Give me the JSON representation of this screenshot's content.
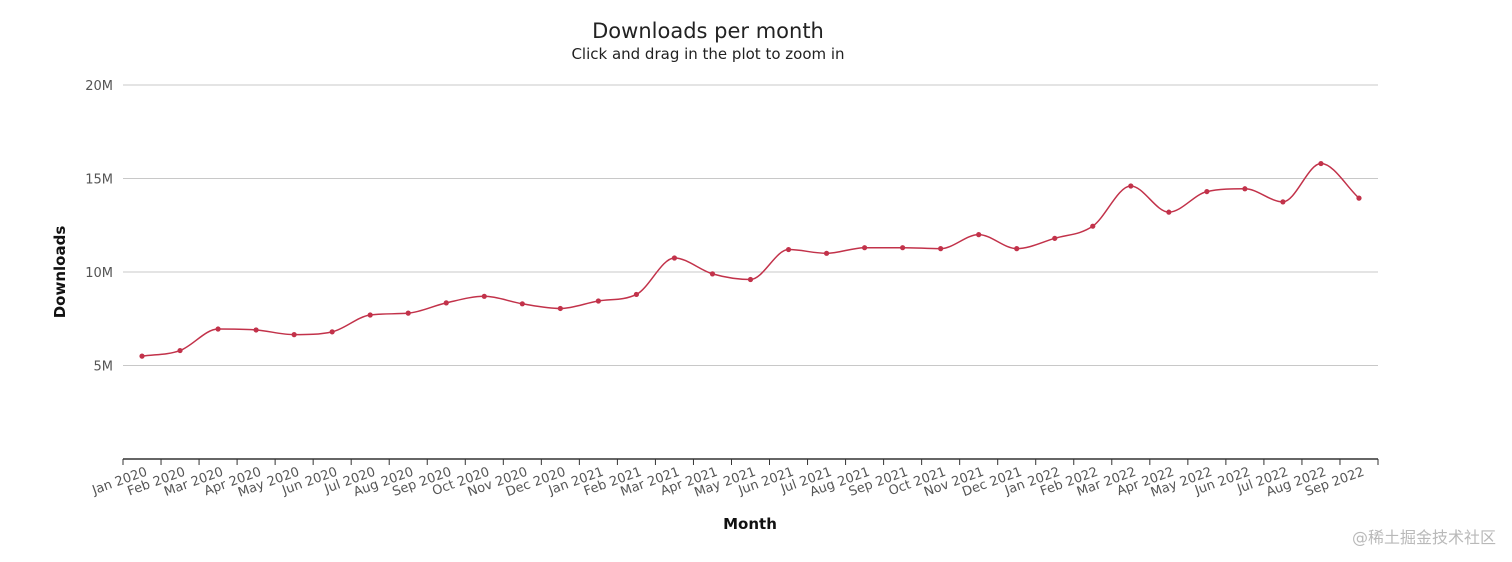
{
  "chart_data": {
    "type": "line",
    "title": "Downloads per month",
    "subtitle": "Click and drag in the plot to zoom in",
    "xlabel": "Month",
    "ylabel": "Downloads",
    "ylim": [
      0,
      20000000
    ],
    "yticks": [
      5000000,
      10000000,
      15000000,
      20000000
    ],
    "ytick_labels": [
      "5M",
      "10M",
      "15M",
      "20M"
    ],
    "grid": true,
    "legend": "none",
    "categories": [
      "Jan 2020",
      "Feb 2020",
      "Mar 2020",
      "Apr 2020",
      "May 2020",
      "Jun 2020",
      "Jul 2020",
      "Aug 2020",
      "Sep 2020",
      "Oct 2020",
      "Nov 2020",
      "Dec 2020",
      "Jan 2021",
      "Feb 2021",
      "Mar 2021",
      "Apr 2021",
      "May 2021",
      "Jun 2021",
      "Jul 2021",
      "Aug 2021",
      "Sep 2021",
      "Oct 2021",
      "Nov 2021",
      "Dec 2021",
      "Jan 2022",
      "Feb 2022",
      "Mar 2022",
      "Apr 2022",
      "May 2022",
      "Jun 2022",
      "Jul 2022",
      "Aug 2022",
      "Sep 2022"
    ],
    "series": [
      {
        "color": "#c2324a",
        "values": [
          5500000,
          5800000,
          6950000,
          6900000,
          6650000,
          6800000,
          7700000,
          7800000,
          8350000,
          8700000,
          8300000,
          8050000,
          8450000,
          8800000,
          10750000,
          9900000,
          9600000,
          11200000,
          11000000,
          11300000,
          11300000,
          11250000,
          12000000,
          11250000,
          11800000,
          12450000,
          14600000,
          13200000,
          14300000,
          14450000,
          13750000,
          15800000,
          13950000
        ]
      }
    ]
  },
  "watermark": "@稀土掘金技术社区"
}
